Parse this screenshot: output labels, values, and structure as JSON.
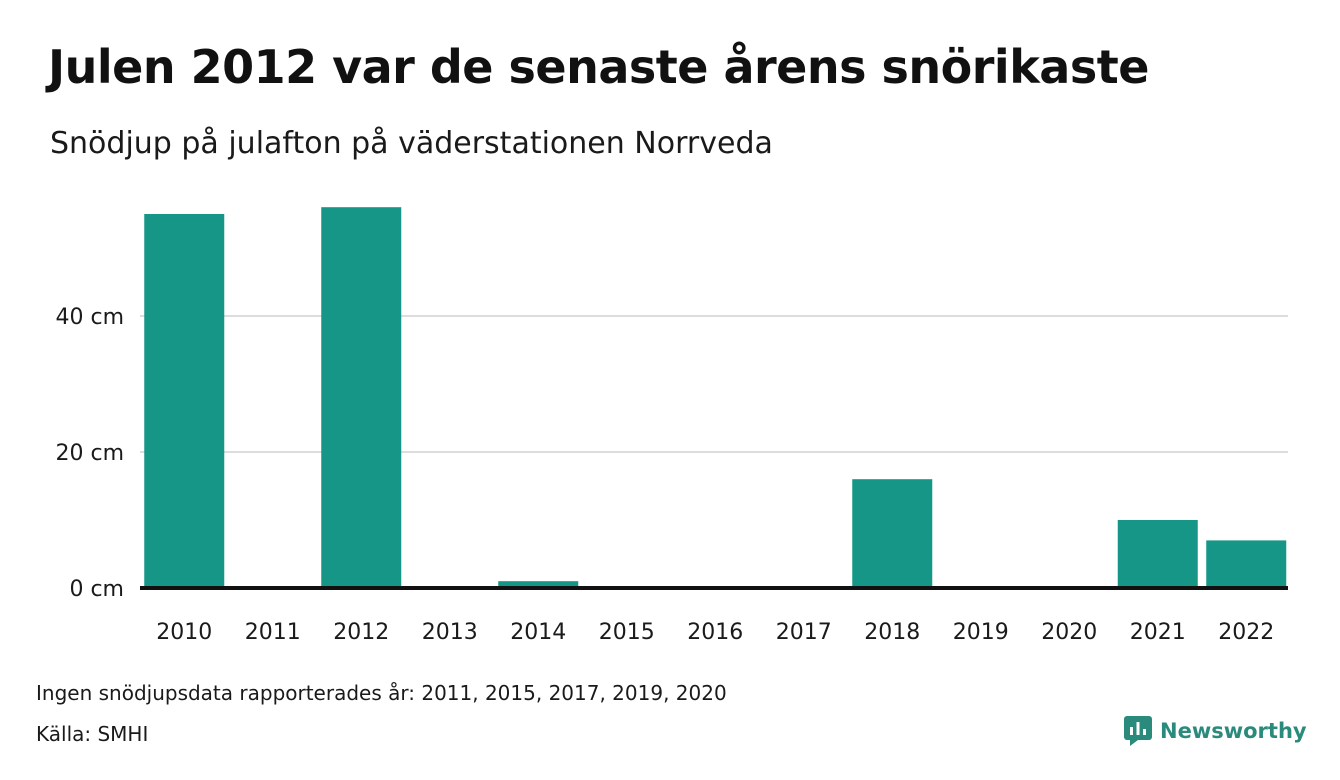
{
  "title": "Julen 2012 var de senaste årens snörikaste",
  "subtitle": "Snödjup på julafton på väderstationen Norrveda",
  "footer": {
    "note": "Ingen snödjupsdata rapporterades år: 2011, 2015, 2017, 2019, 2020",
    "source": "Källa: SMHI",
    "brand": "Newsworthy",
    "brand_icon": "newsworthy-logo-icon"
  },
  "colors": {
    "bar": "#159686",
    "grid": "#dddddd",
    "baseline": "#111111",
    "brand": "#2a8a7c"
  },
  "chart_data": {
    "type": "bar",
    "categories": [
      "2010",
      "2011",
      "2012",
      "2013",
      "2014",
      "2015",
      "2016",
      "2017",
      "2018",
      "2019",
      "2020",
      "2021",
      "2022"
    ],
    "values": [
      55,
      null,
      56,
      0,
      1,
      null,
      0,
      null,
      16,
      null,
      null,
      10,
      7
    ],
    "y_ticks": [
      0,
      20,
      40
    ],
    "y_tick_labels": [
      "0 cm",
      "20 cm",
      "40 cm"
    ],
    "ylim": [
      0,
      60
    ],
    "xlabel": "",
    "ylabel": "",
    "grid": true,
    "legend": "none"
  }
}
